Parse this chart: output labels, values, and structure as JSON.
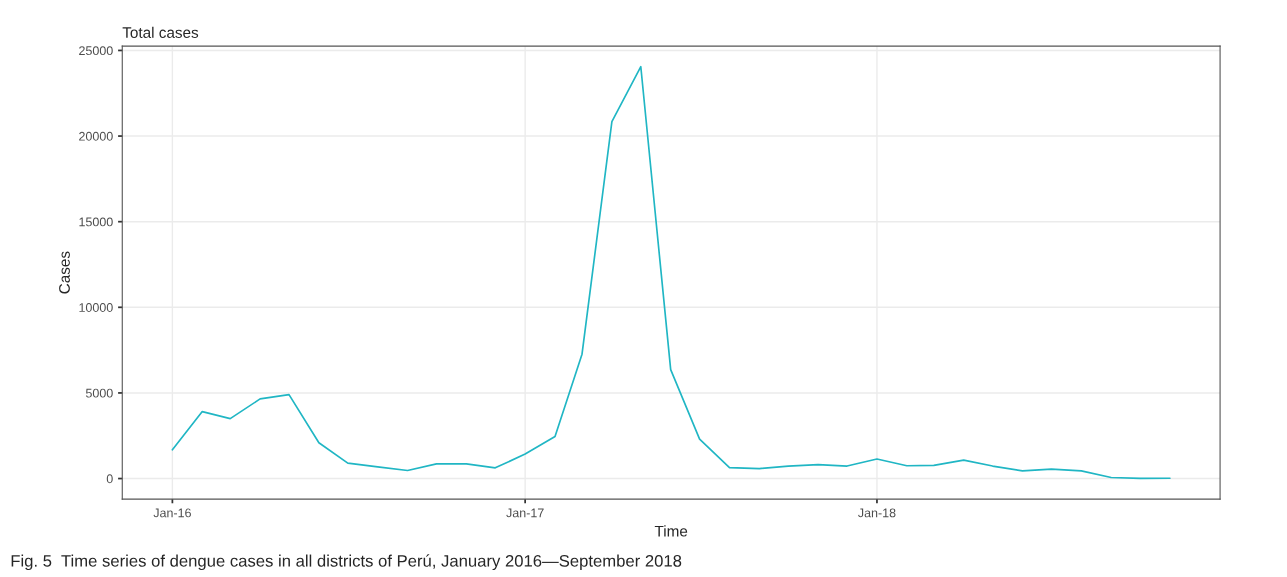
{
  "chart_data": {
    "type": "line",
    "title": "Total cases",
    "xlabel": "Time",
    "ylabel": "Cases",
    "x": [
      "2016-01",
      "2016-02",
      "2016-03",
      "2016-04",
      "2016-05",
      "2016-06",
      "2016-07",
      "2016-08",
      "2016-09",
      "2016-10",
      "2016-11",
      "2016-12",
      "2017-01",
      "2017-02",
      "2017-03",
      "2017-04",
      "2017-05",
      "2017-06",
      "2017-07",
      "2017-08",
      "2017-09",
      "2017-10",
      "2017-11",
      "2017-12",
      "2018-01",
      "2018-02",
      "2018-03",
      "2018-04",
      "2018-05",
      "2018-06",
      "2018-07",
      "2018-08",
      "2018-09",
      "2018-10",
      "2018-11"
    ],
    "series": [
      {
        "color": "#20b6c4",
        "values": [
          1680,
          3910,
          3500,
          4650,
          4900,
          2090,
          900,
          680,
          470,
          860,
          860,
          625,
          1430,
          2460,
          7260,
          20840,
          24050,
          6360,
          2300,
          640,
          580,
          730,
          810,
          730,
          1140,
          750,
          770,
          1080,
          730,
          450,
          550,
          450,
          60,
          10,
          20
        ]
      }
    ],
    "xlim": [
      "2015-11-10",
      "2018-12-23"
    ],
    "ylim": [
      -1200,
      25250
    ],
    "xticks": [
      {
        "value": "2016-01-01",
        "label": "Jan-16"
      },
      {
        "value": "2017-01-01",
        "label": "Jan-17"
      },
      {
        "value": "2018-01-01",
        "label": "Jan-18"
      }
    ],
    "yticks": [
      0,
      5000,
      10000,
      15000,
      20000,
      25000
    ],
    "grid": true,
    "marker": "none",
    "line_style": "solid",
    "legend": false,
    "annotations": [
      "Fig. 5  Time series of dengue cases in all districts of Perú, January 2016—September 2018"
    ]
  }
}
